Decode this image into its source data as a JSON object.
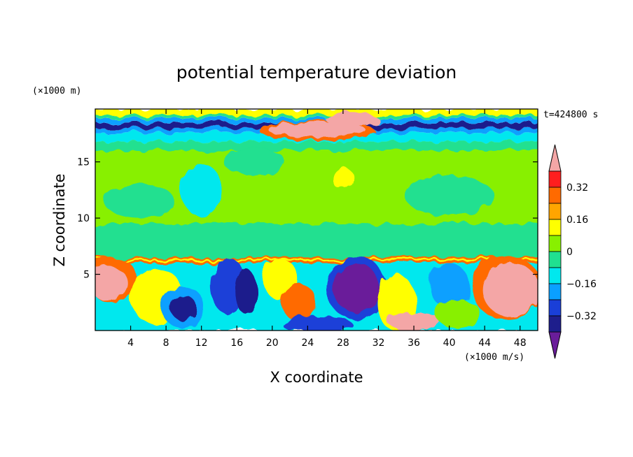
{
  "chart_data": {
    "type": "heatmap",
    "title": "potential temperature deviation",
    "xlabel": "X coordinate",
    "ylabel": "Z coordinate",
    "x_unit": "(×1000 m/s)",
    "y_unit": "(×1000 m)",
    "time_label": "t=424800 s",
    "xlim": [
      0,
      50
    ],
    "ylim": [
      0,
      19.7
    ],
    "x_ticks": [
      4,
      8,
      12,
      16,
      20,
      24,
      28,
      32,
      36,
      40,
      44,
      48
    ],
    "y_ticks": [
      5,
      10,
      15
    ],
    "colorbar": {
      "levels": [
        -0.48,
        -0.4,
        -0.32,
        -0.24,
        -0.16,
        -0.08,
        0,
        0.08,
        0.16,
        0.24,
        0.32,
        0.4
      ],
      "tick_labels": [
        "0.32",
        "0.16",
        "0",
        "−0.16",
        "−0.32"
      ],
      "tick_values": [
        0.32,
        0.16,
        0,
        -0.16,
        -0.32
      ],
      "colors": [
        "#6a1d9a",
        "#1e1e8c",
        "#1a3fd8",
        "#0aa0ff",
        "#00e8ee",
        "#20e090",
        "#88f000",
        "#ffff00",
        "#ffa500",
        "#ff6a00",
        "#ff1e1e",
        "#f4a6a6"
      ]
    },
    "regions": [
      {
        "name": "stratosphere band",
        "x": [
          0,
          50
        ],
        "z": [
          17.5,
          19.0
        ],
        "value": -0.32
      },
      {
        "name": "warm anomaly aloft",
        "x": [
          18,
          32
        ],
        "z": [
          16.8,
          19.0
        ],
        "value": 0.4
      },
      {
        "name": "troposphere background",
        "x": [
          0,
          50
        ],
        "z": [
          6.5,
          16.5
        ],
        "value": 0.02
      },
      {
        "name": "inversion layer",
        "x": [
          0,
          50
        ],
        "z": [
          6.0,
          6.5
        ],
        "value": 0.32
      },
      {
        "name": "cold core",
        "x": [
          27,
          32
        ],
        "z": [
          2.5,
          5.5
        ],
        "value": -0.44
      },
      {
        "name": "warm core right",
        "x": [
          43,
          50
        ],
        "z": [
          0.8,
          5.5
        ],
        "value": 0.4
      },
      {
        "name": "warm core left",
        "x": [
          0,
          3
        ],
        "z": [
          3,
          5.5
        ],
        "value": 0.4
      }
    ]
  }
}
